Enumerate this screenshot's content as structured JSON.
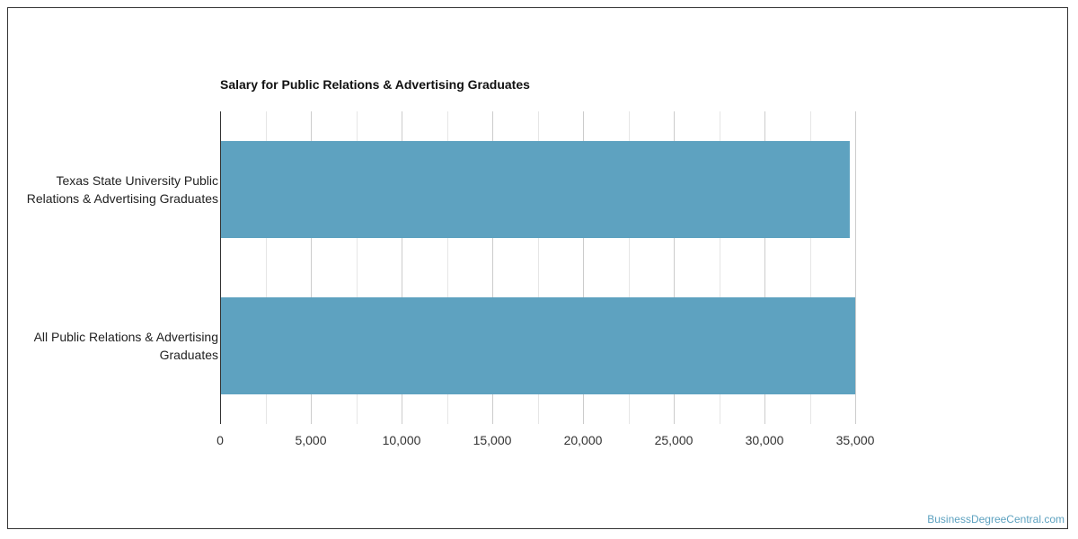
{
  "chart_data": {
    "type": "bar",
    "orientation": "horizontal",
    "title": "Salary for Public Relations & Advertising Graduates",
    "categories": [
      [
        "Texas State University Public",
        "Relations & Advertising Graduates"
      ],
      [
        "All Public Relations & Advertising",
        "Graduates"
      ]
    ],
    "values": [
      34700,
      35000
    ],
    "xlim": [
      0,
      35000
    ],
    "xticks": [
      "0",
      "5,000",
      "10,000",
      "15,000",
      "20,000",
      "25,000",
      "30,000",
      "35,000"
    ],
    "grid": true,
    "bar_color": "#5ea2c0"
  },
  "watermark": "BusinessDegreeCentral.com"
}
